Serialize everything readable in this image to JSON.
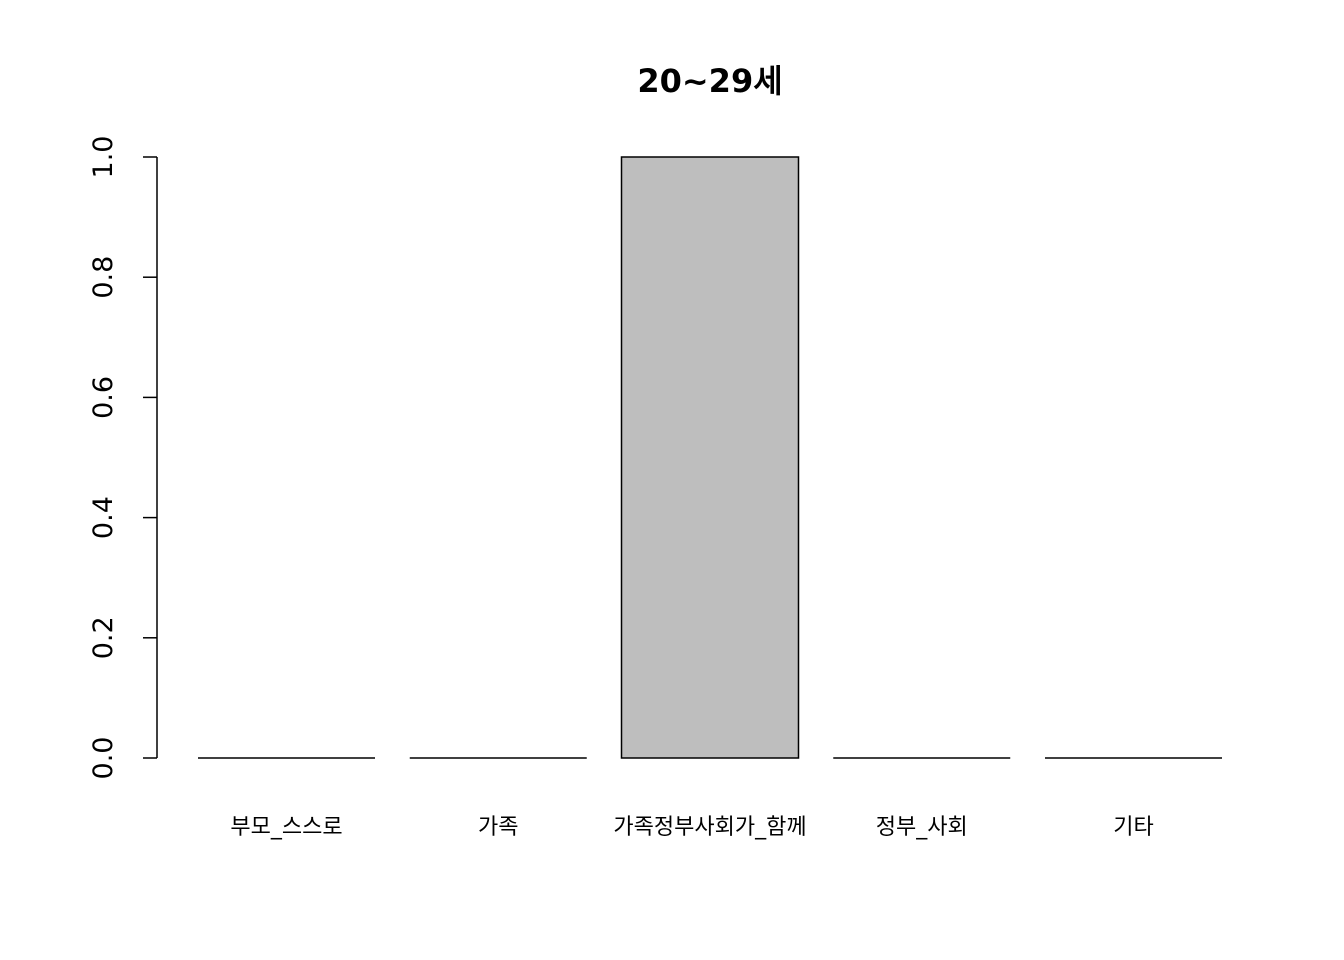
{
  "chart_data": {
    "type": "bar",
    "title": "20~29세",
    "xlabel": "",
    "ylabel": "",
    "categories": [
      "부모_스스로",
      "가족",
      "가족정부사회가_함께",
      "정부_사회",
      "기타"
    ],
    "values": [
      0,
      0,
      1.0,
      0,
      0
    ],
    "ylim": [
      0,
      1.0
    ],
    "yticks": [
      0.0,
      0.2,
      0.4,
      0.6,
      0.8,
      1.0
    ],
    "ytick_labels": [
      "0.0",
      "0.2",
      "0.4",
      "0.6",
      "0.8",
      "1.0"
    ],
    "grid": false,
    "legend": "none",
    "bar_color": "#bebebe",
    "border_color": "#000000"
  }
}
